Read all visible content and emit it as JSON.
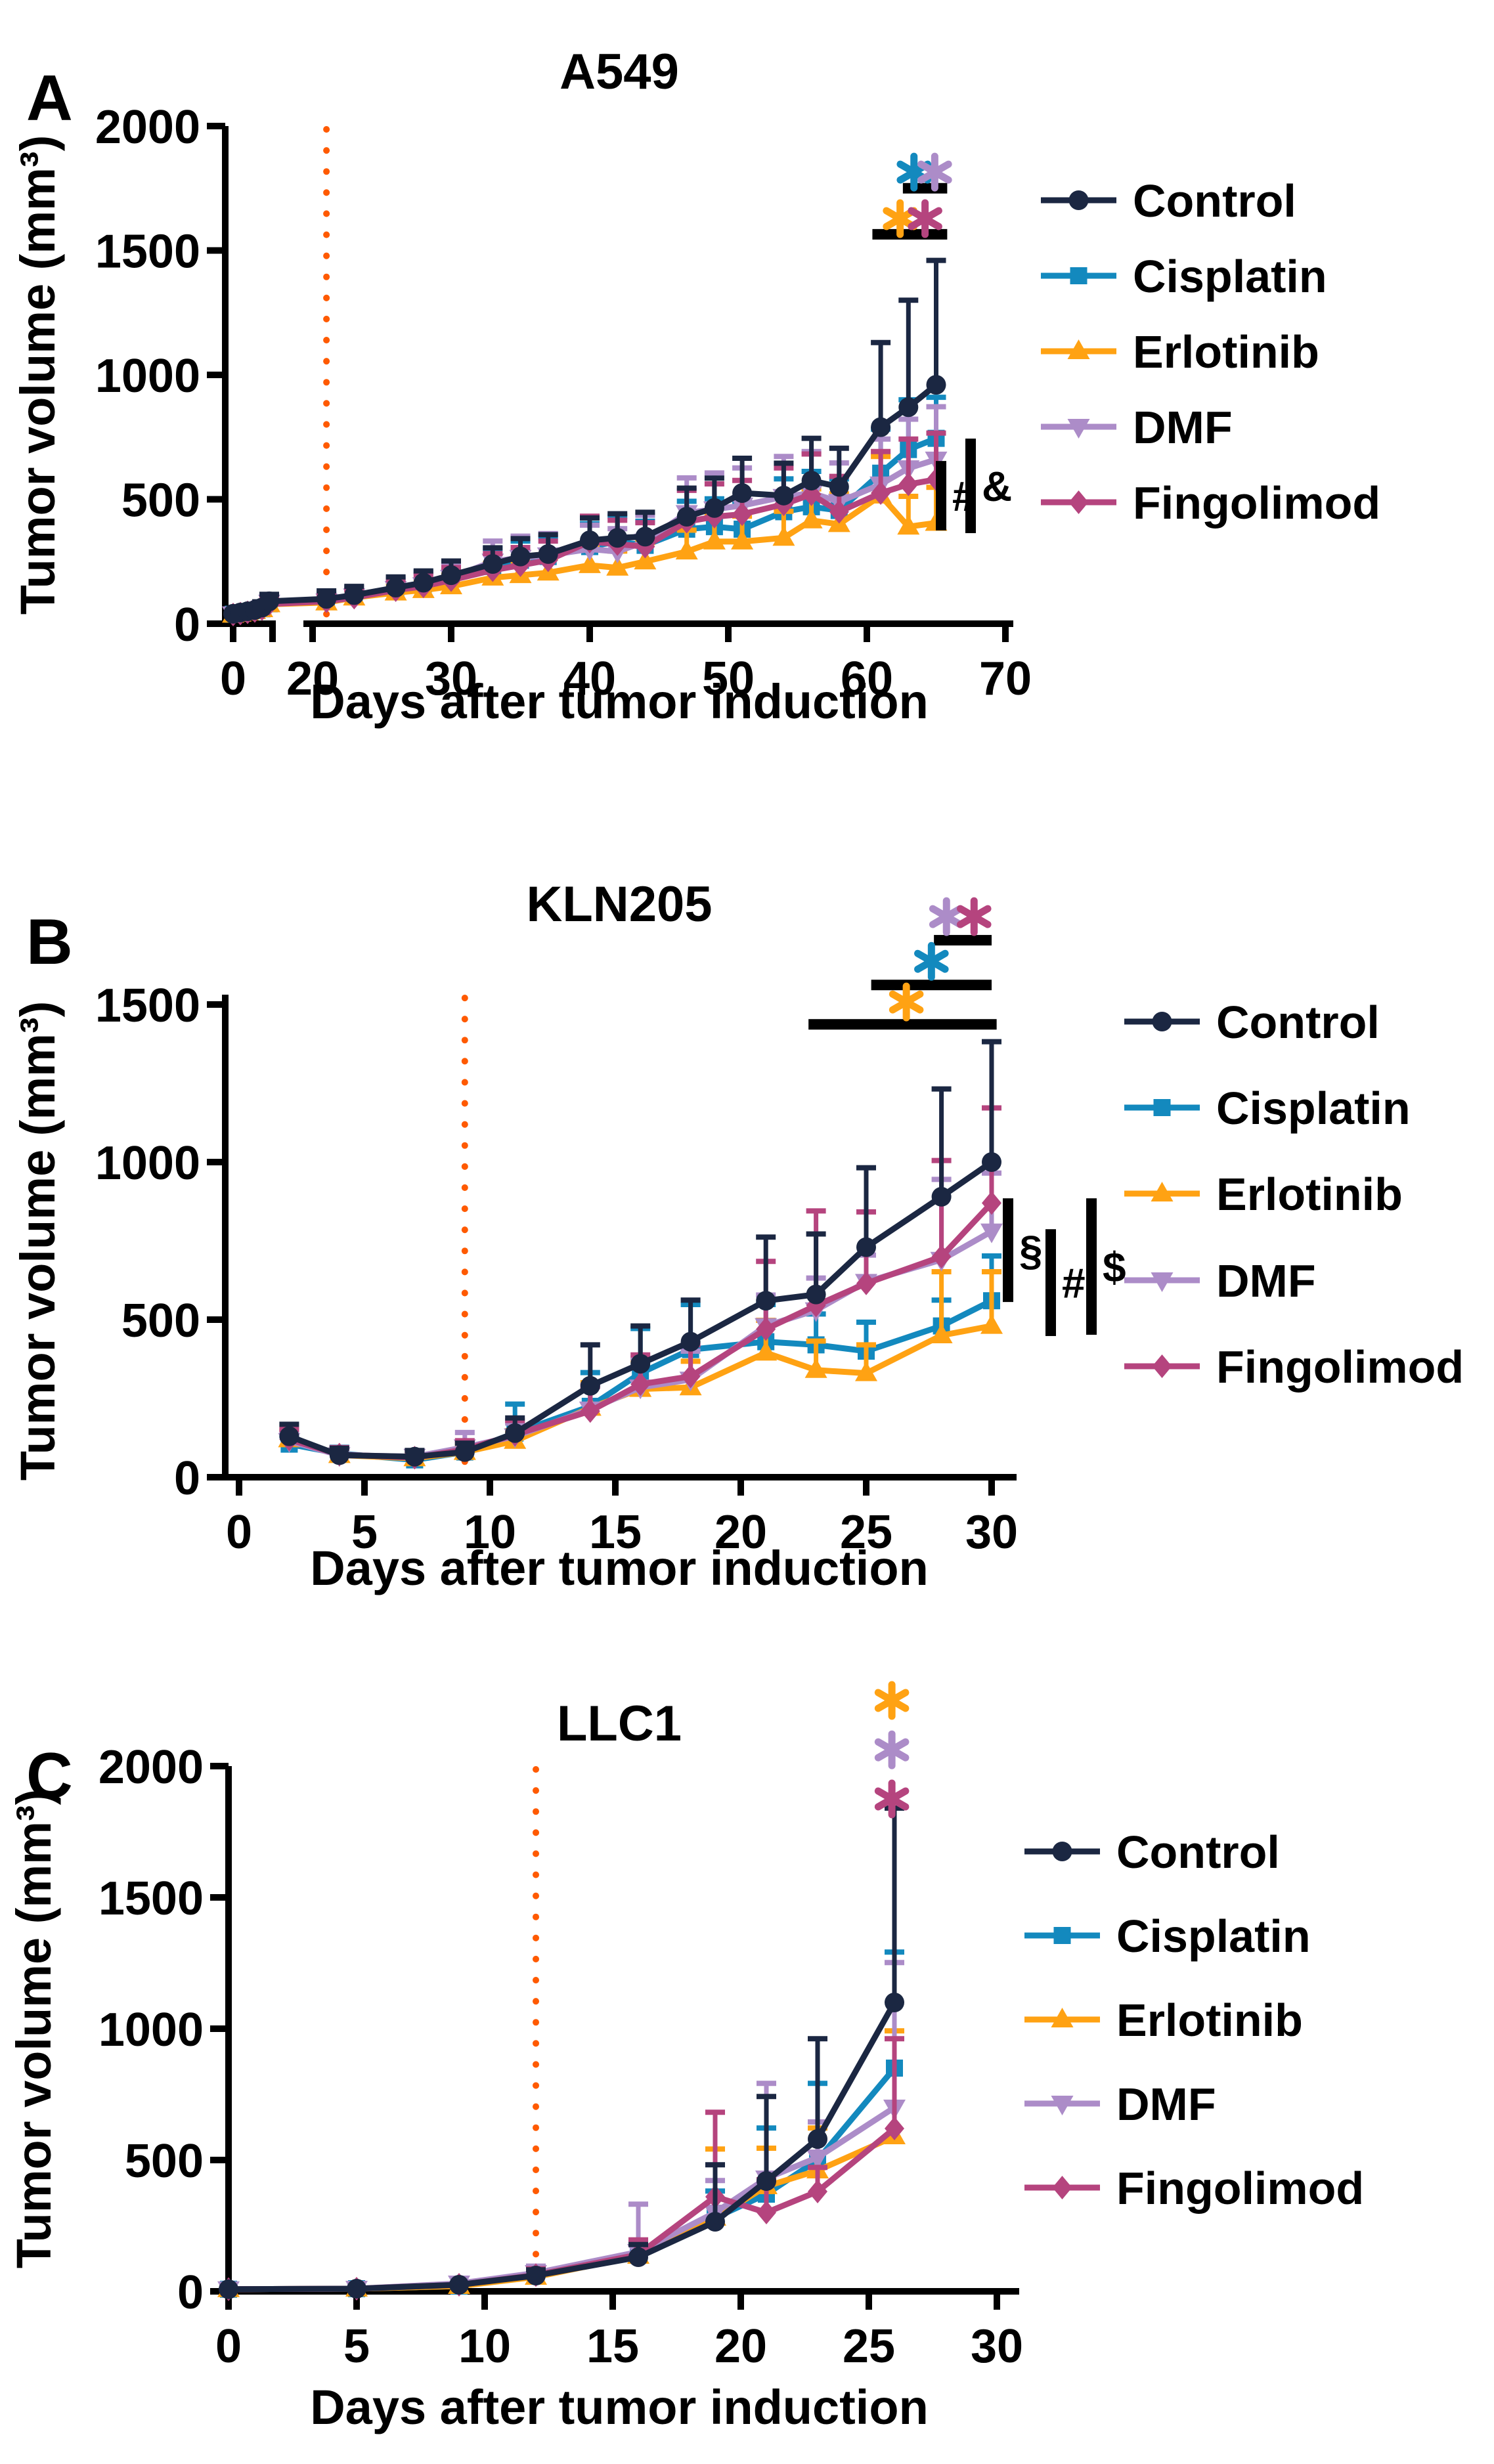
{
  "chart_data": [
    {
      "type": "line",
      "panel_label": "A",
      "title": "A549",
      "xlabel": "Days after tumor induction",
      "ylabel": "Tumor volume (mm³)",
      "ylim": [
        0,
        2000
      ],
      "yticks": [
        0,
        500,
        1000,
        1500,
        2000
      ],
      "xticks": [
        0,
        20,
        30,
        40,
        50,
        60,
        70
      ],
      "axis_break_after_day": 6,
      "treatment_line": {
        "day": 21,
        "color": "#FF5A00"
      },
      "x": [
        0,
        1,
        2,
        3,
        4,
        5,
        21,
        23,
        26,
        28,
        30,
        33,
        35,
        37,
        40,
        42,
        44,
        47,
        49,
        51,
        54,
        56,
        58,
        61,
        63,
        65
      ],
      "series": [
        {
          "name": "Control",
          "color": "#1B2742",
          "marker": "circle",
          "values": [
            40,
            45,
            50,
            55,
            65,
            90,
            100,
            115,
            145,
            165,
            195,
            240,
            270,
            280,
            335,
            345,
            350,
            430,
            465,
            525,
            515,
            575,
            550,
            790,
            870,
            960
          ],
          "err_top": [
            55,
            62,
            68,
            75,
            88,
            118,
            132,
            150,
            188,
            212,
            252,
            305,
            342,
            358,
            425,
            442,
            448,
            545,
            585,
            665,
            645,
            745,
            705,
            1130,
            1300,
            1460
          ]
        },
        {
          "name": "Cisplatin",
          "color": "#1389BE",
          "marker": "square",
          "values": [
            38,
            42,
            48,
            52,
            60,
            80,
            90,
            110,
            140,
            160,
            185,
            230,
            255,
            270,
            310,
            330,
            315,
            380,
            390,
            380,
            450,
            470,
            455,
            605,
            700,
            745
          ],
          "err_top": [
            50,
            55,
            62,
            68,
            78,
            102,
            122,
            146,
            182,
            208,
            242,
            302,
            332,
            348,
            402,
            432,
            412,
            492,
            502,
            492,
            582,
            612,
            582,
            782,
            900,
            910
          ]
        },
        {
          "name": "Erlotinib",
          "color": "#FFA213",
          "marker": "triangle-up",
          "values": [
            36,
            40,
            45,
            50,
            58,
            78,
            85,
            105,
            125,
            135,
            150,
            185,
            195,
            205,
            235,
            225,
            250,
            290,
            330,
            330,
            345,
            415,
            400,
            515,
            390,
            405
          ],
          "err_top": [
            46,
            52,
            58,
            64,
            74,
            98,
            112,
            136,
            162,
            176,
            196,
            242,
            252,
            266,
            306,
            292,
            326,
            376,
            432,
            432,
            452,
            542,
            522,
            672,
            512,
            548
          ]
        },
        {
          "name": "DMF",
          "color": "#AC8CC8",
          "marker": "triangle-down",
          "values": [
            38,
            43,
            48,
            53,
            62,
            85,
            90,
            110,
            140,
            155,
            185,
            250,
            265,
            275,
            300,
            290,
            330,
            445,
            460,
            475,
            510,
            525,
            490,
            560,
            625,
            660
          ],
          "err_top": [
            50,
            56,
            62,
            68,
            80,
            108,
            122,
            146,
            186,
            206,
            246,
            332,
            352,
            362,
            396,
            382,
            436,
            586,
            606,
            626,
            672,
            692,
            646,
            742,
            822,
            872
          ]
        },
        {
          "name": "Fingolimod",
          "color": "#B5447E",
          "marker": "diamond",
          "values": [
            37,
            41,
            46,
            51,
            59,
            79,
            90,
            105,
            135,
            150,
            175,
            215,
            235,
            255,
            330,
            320,
            310,
            410,
            430,
            440,
            480,
            520,
            450,
            525,
            560,
            580
          ],
          "err_top": [
            48,
            53,
            60,
            66,
            76,
            100,
            116,
            136,
            176,
            196,
            226,
            282,
            306,
            332,
            432,
            416,
            406,
            536,
            562,
            576,
            626,
            682,
            592,
            692,
            742,
            766
          ]
        }
      ],
      "legend": [
        "Control",
        "Cisplatin",
        "Erlotinib",
        "DMF",
        "Fingolimod"
      ],
      "significance_bars": [
        {
          "day_start": 62.6,
          "day_end": 65.8,
          "value": 1750,
          "asterisks": [
            {
              "day": 63.4,
              "value": 1815,
              "color": "#1389BE"
            },
            {
              "day": 64.9,
              "value": 1815,
              "color": "#AC8CC8"
            }
          ]
        },
        {
          "day_start": 60.4,
          "day_end": 65.8,
          "value": 1565,
          "asterisks": [
            {
              "day": 62.4,
              "value": 1628,
              "color": "#FFA213"
            },
            {
              "day": 64.2,
              "value": 1628,
              "color": "#B5447E"
            }
          ]
        }
      ],
      "side_brackets": [
        {
          "symbol": "#",
          "value_top": 654,
          "value_bottom": 375
        },
        {
          "symbol": "&",
          "value_top": 744,
          "value_bottom": 364
        }
      ]
    },
    {
      "type": "line",
      "panel_label": "B",
      "title": "KLN205",
      "xlabel": "Days after tumor induction",
      "ylabel": "Tumor volume (mm³)",
      "ylim": [
        0,
        1500
      ],
      "yticks": [
        0,
        500,
        1000,
        1500
      ],
      "xticks": [
        0,
        5,
        10,
        15,
        20,
        25,
        30
      ],
      "treatment_line": {
        "day": 9,
        "color": "#FF5A00"
      },
      "x": [
        2,
        4,
        7,
        9,
        11,
        14,
        16,
        18,
        21,
        23,
        25,
        28,
        30
      ],
      "series": [
        {
          "name": "Control",
          "color": "#1B2742",
          "marker": "circle",
          "values": [
            130,
            70,
            65,
            80,
            140,
            290,
            360,
            430,
            560,
            580,
            730,
            890,
            1000
          ],
          "err_top": [
            168,
            92,
            85,
            108,
            188,
            420,
            480,
            562,
            762,
            772,
            982,
            1232,
            1382
          ]
        },
        {
          "name": "Cisplatin",
          "color": "#1389BE",
          "marker": "square",
          "values": [
            105,
            75,
            55,
            80,
            140,
            225,
            330,
            405,
            430,
            420,
            400,
            480,
            560
          ],
          "err_top": [
            132,
            95,
            72,
            104,
            232,
            332,
            472,
            548,
            548,
            518,
            492,
            562,
            702
          ]
        },
        {
          "name": "Erlotinib",
          "color": "#FFA213",
          "marker": "triangle-up",
          "values": [
            120,
            70,
            60,
            80,
            115,
            220,
            280,
            285,
            395,
            340,
            330,
            450,
            480
          ],
          "err_top": [
            150,
            90,
            78,
            102,
            148,
            300,
            372,
            368,
            498,
            432,
            420,
            652,
            652
          ]
        },
        {
          "name": "DMF",
          "color": "#AC8CC8",
          "marker": "triangle-down",
          "values": [
            115,
            70,
            65,
            95,
            130,
            215,
            285,
            310,
            480,
            530,
            620,
            690,
            780
          ],
          "err_top": [
            145,
            90,
            84,
            142,
            172,
            292,
            378,
            400,
            578,
            632,
            705,
            945,
            965
          ]
        },
        {
          "name": "Fingolimod",
          "color": "#B5447E",
          "marker": "diamond",
          "values": [
            120,
            72,
            62,
            88,
            135,
            210,
            295,
            320,
            470,
            545,
            615,
            700,
            870
          ],
          "err_top": [
            152,
            94,
            80,
            116,
            180,
            288,
            388,
            420,
            685,
            845,
            842,
            1005,
            1172
          ]
        }
      ],
      "legend": [
        "Control",
        "Cisplatin",
        "Erlotinib",
        "DMF",
        "Fingolimod"
      ],
      "significance_bars": [
        {
          "day_start": 27.7,
          "day_end": 30.0,
          "value": 1704,
          "asterisks": [
            {
              "day": 28.2,
              "value": 1779,
              "color": "#AC8CC8"
            },
            {
              "day": 29.3,
              "value": 1779,
              "color": "#B5447E"
            }
          ]
        },
        {
          "day_start": 25.2,
          "day_end": 30.0,
          "value": 1562,
          "asterisks": [
            {
              "day": 27.6,
              "value": 1637,
              "color": "#1389BE"
            }
          ]
        },
        {
          "day_start": 22.7,
          "day_end": 30.2,
          "value": 1437,
          "asterisks": [
            {
              "day": 26.6,
              "value": 1508,
              "color": "#FFA213"
            }
          ]
        }
      ],
      "side_brackets": [
        {
          "symbol": "§",
          "value_top": 885,
          "value_bottom": 556
        },
        {
          "symbol": "#",
          "value_top": 787,
          "value_bottom": 448
        },
        {
          "symbol": "$",
          "value_top": 885,
          "value_bottom": 452
        }
      ]
    },
    {
      "type": "line",
      "panel_label": "C",
      "title": "LLC1",
      "xlabel": "Days after tumor induction",
      "ylabel": "Tumor volume (mm³)",
      "ylim": [
        0,
        2000
      ],
      "yticks": [
        0,
        500,
        1000,
        1500,
        2000
      ],
      "xticks": [
        0,
        5,
        10,
        15,
        20,
        25,
        30
      ],
      "treatment_line": {
        "day": 12,
        "color": "#FF5A00"
      },
      "x": [
        0,
        5,
        9,
        12,
        16,
        19,
        21,
        23,
        26
      ],
      "series": [
        {
          "name": "Control",
          "color": "#1B2742",
          "marker": "circle",
          "values": [
            8,
            10,
            25,
            60,
            130,
            265,
            420,
            580,
            1100
          ],
          "err_top": [
            12,
            15,
            36,
            82,
            178,
            482,
            742,
            962,
            1840
          ]
        },
        {
          "name": "Cisplatin",
          "color": "#1389BE",
          "marker": "square",
          "values": [
            8,
            10,
            20,
            58,
            140,
            280,
            370,
            500,
            850
          ],
          "err_top": [
            12,
            15,
            30,
            76,
            192,
            382,
            622,
            792,
            1292
          ]
        },
        {
          "name": "Erlotinib",
          "color": "#FFA213",
          "marker": "triangle-up",
          "values": [
            8,
            10,
            20,
            55,
            135,
            280,
            400,
            460,
            590
          ],
          "err_top": [
            12,
            15,
            30,
            74,
            186,
            542,
            545,
            622,
            992
          ]
        },
        {
          "name": "DMF",
          "color": "#AC8CC8",
          "marker": "triangle-down",
          "values": [
            8,
            10,
            30,
            70,
            150,
            300,
            430,
            510,
            700
          ],
          "err_top": [
            12,
            15,
            44,
            96,
            332,
            422,
            792,
            645,
            1252
          ]
        },
        {
          "name": "Fingolimod",
          "color": "#B5447E",
          "marker": "diamond",
          "values": [
            8,
            10,
            25,
            62,
            140,
            360,
            300,
            380,
            620
          ],
          "err_top": [
            12,
            15,
            36,
            86,
            196,
            682,
            425,
            472,
            962
          ]
        }
      ],
      "legend": [
        "Control",
        "Cisplatin",
        "Erlotinib",
        "DMF",
        "Fingolimod"
      ],
      "significance_stack": {
        "day": 25.9,
        "items": [
          {
            "color": "#FFA213",
            "value": 2250
          },
          {
            "color": "#AC8CC8",
            "value": 2062
          },
          {
            "color": "#B5447E",
            "value": 1875
          }
        ]
      }
    }
  ]
}
